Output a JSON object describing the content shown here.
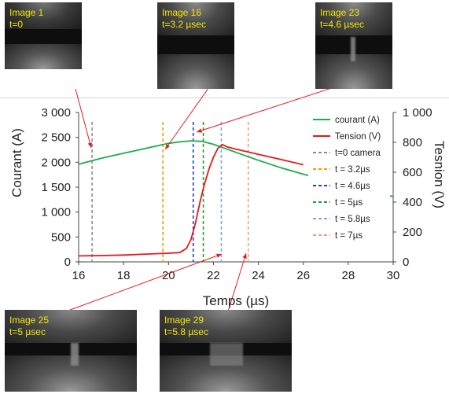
{
  "frames": [
    {
      "label": "Image 1",
      "time": "t=0"
    },
    {
      "label": "Image 16",
      "time": "t=3.2 µsec"
    },
    {
      "label": "Image 23",
      "time": "t=4.6 µsec"
    },
    {
      "label": "Image 25",
      "time": "t=5 µsec"
    },
    {
      "label": "Image 29",
      "time": "t=5.8 µsec"
    }
  ],
  "chart_data": {
    "type": "line",
    "title": "",
    "xlabel": "Temps (µs)",
    "ylabel": "Courant (A)",
    "y2label": "Tesnion (V)",
    "xlim": [
      16,
      30
    ],
    "ylim": [
      0,
      3000
    ],
    "y2lim": [
      0,
      1000
    ],
    "x_ticks": [
      "16",
      "18",
      "20",
      "22",
      "24",
      "26",
      "28",
      "30"
    ],
    "y_ticks": [
      "0",
      "500",
      "1 000",
      "1 500",
      "2 000",
      "2 500",
      "3 000"
    ],
    "y2_ticks": [
      "0",
      "200",
      "400",
      "600",
      "800",
      "1 000"
    ],
    "legend_position": "right",
    "colors": {
      "courant": "#1aad4b",
      "tension": "#e31a1c"
    },
    "series": [
      {
        "name": "courant (A)",
        "axis": "left",
        "color": "#1aad4b",
        "x": [
          16,
          17,
          18,
          19,
          20,
          20.5,
          21,
          21.5,
          22,
          23,
          24,
          25,
          26,
          27,
          28,
          29,
          30
        ],
        "y": [
          1960,
          2080,
          2180,
          2280,
          2380,
          2410,
          2430,
          2420,
          2360,
          2200,
          2040,
          1890,
          1760,
          1640,
          1530,
          1420,
          1310
        ]
      },
      {
        "name": "Tension (V)",
        "axis": "right",
        "color": "#e31a1c",
        "x": [
          16,
          17,
          18,
          19,
          20,
          20.5,
          20.8,
          21.0,
          21.2,
          21.4,
          21.6,
          21.8,
          22.0,
          22.2,
          22.4,
          22.6,
          23,
          24,
          25,
          26
        ],
        "y": [
          40,
          42,
          46,
          52,
          58,
          62,
          90,
          150,
          260,
          400,
          520,
          620,
          700,
          760,
          785,
          770,
          755,
          720,
          685,
          650
        ]
      },
      {
        "name": "Tension (V)",
        "axis": "right",
        "color": "#e31a1c",
        "x": [
          26.6,
          27.5,
          28.5,
          29.3
        ],
        "y": [
          640,
          625,
          610,
          600
        ]
      }
    ],
    "markers": [
      {
        "name": "t=0 camera",
        "x": 16.6,
        "color": "#8c8c8c"
      },
      {
        "name": "t = 3.2µs",
        "x": 19.75,
        "color": "#f0a000"
      },
      {
        "name": "t = 4.6µs",
        "x": 21.1,
        "color": "#1f3fbf"
      },
      {
        "name": "t = 5µs",
        "x": 21.55,
        "color": "#2a9a2a"
      },
      {
        "name": "t = 5.8µs",
        "x": 22.35,
        "color": "#7aa6e6"
      },
      {
        "name": "t = 7µs",
        "x": 23.55,
        "color": "#f0a080"
      }
    ]
  }
}
